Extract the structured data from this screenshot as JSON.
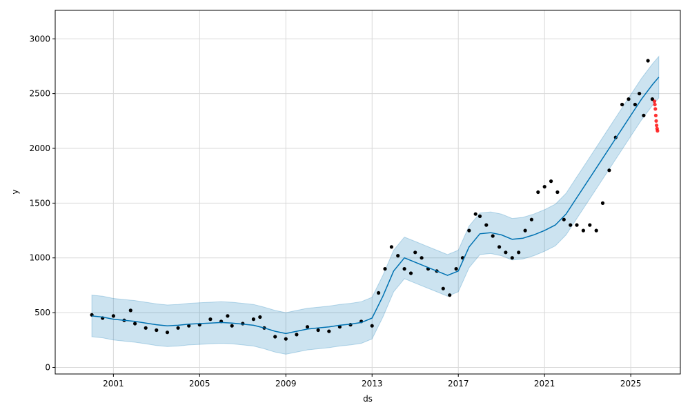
{
  "chart_data": {
    "type": "line",
    "title": "",
    "xlabel": "ds",
    "ylabel": "y",
    "xlim": [
      1998.3,
      2027.3
    ],
    "ylim": [
      -60,
      3260
    ],
    "xticks": [
      {
        "value": 2001,
        "label": "2001"
      },
      {
        "value": 2005,
        "label": "2005"
      },
      {
        "value": 2009,
        "label": "2009"
      },
      {
        "value": 2013,
        "label": "2013"
      },
      {
        "value": 2017,
        "label": "2017"
      },
      {
        "value": 2021,
        "label": "2021"
      },
      {
        "value": 2025,
        "label": "2025"
      }
    ],
    "yticks": [
      {
        "value": 0,
        "label": "0"
      },
      {
        "value": 500,
        "label": "500"
      },
      {
        "value": 1000,
        "label": "1000"
      },
      {
        "value": 1500,
        "label": "1500"
      },
      {
        "value": 2000,
        "label": "2000"
      },
      {
        "value": 2500,
        "label": "2500"
      },
      {
        "value": 3000,
        "label": "3000"
      }
    ],
    "grid": true,
    "colors": {
      "forecast_line": "#0072B2",
      "interval_fill": "#0072B2",
      "interval_edge": "#0072B2",
      "actual_points": "#000000",
      "test_points": "#ff0000",
      "grid": "#d9d9d9"
    },
    "forecast": {
      "x": [
        2000.0,
        2000.5,
        2001.0,
        2001.5,
        2002.0,
        2002.5,
        2003.0,
        2003.5,
        2004.0,
        2004.5,
        2005.0,
        2005.5,
        2006.0,
        2006.5,
        2007.0,
        2007.5,
        2008.0,
        2008.5,
        2009.0,
        2009.5,
        2010.0,
        2010.5,
        2011.0,
        2011.5,
        2012.0,
        2012.5,
        2013.0,
        2013.5,
        2014.0,
        2014.5,
        2015.0,
        2015.5,
        2016.0,
        2016.5,
        2017.0,
        2017.5,
        2018.0,
        2018.5,
        2019.0,
        2019.5,
        2020.0,
        2020.5,
        2021.0,
        2021.5,
        2022.0,
        2022.5,
        2023.0,
        2023.5,
        2024.0,
        2024.5,
        2025.0,
        2025.5,
        2026.0,
        2026.3
      ],
      "yhat": [
        470,
        460,
        440,
        430,
        420,
        405,
        390,
        380,
        385,
        395,
        400,
        405,
        410,
        405,
        395,
        385,
        360,
        330,
        310,
        330,
        350,
        360,
        370,
        385,
        395,
        410,
        450,
        650,
        880,
        1000,
        960,
        920,
        880,
        840,
        880,
        1100,
        1220,
        1230,
        1210,
        1170,
        1180,
        1210,
        1250,
        1300,
        1400,
        1550,
        1700,
        1850,
        2000,
        2150,
        2300,
        2450,
        2580,
        2650
      ],
      "yhat_lower": [
        280,
        270,
        250,
        240,
        230,
        215,
        200,
        190,
        195,
        205,
        210,
        215,
        220,
        215,
        205,
        195,
        170,
        140,
        120,
        140,
        160,
        170,
        180,
        195,
        205,
        220,
        260,
        460,
        690,
        810,
        770,
        730,
        690,
        650,
        690,
        910,
        1030,
        1040,
        1020,
        980,
        990,
        1020,
        1060,
        1110,
        1210,
        1360,
        1510,
        1660,
        1810,
        1960,
        2110,
        2260,
        2390,
        2460
      ],
      "yhat_upper": [
        660,
        650,
        630,
        620,
        610,
        595,
        580,
        570,
        575,
        585,
        590,
        595,
        600,
        595,
        585,
        575,
        550,
        520,
        500,
        520,
        540,
        550,
        560,
        575,
        585,
        600,
        640,
        840,
        1070,
        1190,
        1150,
        1110,
        1070,
        1030,
        1070,
        1290,
        1410,
        1420,
        1400,
        1360,
        1370,
        1400,
        1440,
        1490,
        1590,
        1740,
        1890,
        2040,
        2190,
        2340,
        2490,
        2640,
        2770,
        2840
      ]
    },
    "actual": {
      "x": [
        2000.0,
        2000.5,
        2001.0,
        2001.5,
        2001.8,
        2002.0,
        2002.5,
        2003.0,
        2003.5,
        2004.0,
        2004.5,
        2005.0,
        2005.5,
        2006.0,
        2006.3,
        2006.5,
        2007.0,
        2007.5,
        2007.8,
        2008.0,
        2008.5,
        2009.0,
        2009.5,
        2010.0,
        2010.5,
        2011.0,
        2011.5,
        2012.0,
        2012.5,
        2013.0,
        2013.3,
        2013.6,
        2013.9,
        2014.2,
        2014.5,
        2014.8,
        2015.0,
        2015.3,
        2015.6,
        2016.0,
        2016.3,
        2016.6,
        2016.9,
        2017.2,
        2017.5,
        2017.8,
        2018.0,
        2018.3,
        2018.6,
        2018.9,
        2019.2,
        2019.5,
        2019.8,
        2020.1,
        2020.4,
        2020.7,
        2021.0,
        2021.3,
        2021.6,
        2021.9,
        2022.2,
        2022.5,
        2022.8,
        2023.1,
        2023.4,
        2023.7,
        2024.0,
        2024.3,
        2024.6,
        2024.9,
        2025.2,
        2025.4,
        2025.6,
        2025.8,
        2026.0
      ],
      "y": [
        480,
        450,
        470,
        430,
        520,
        400,
        360,
        340,
        320,
        360,
        380,
        390,
        440,
        420,
        470,
        380,
        400,
        440,
        460,
        360,
        280,
        260,
        300,
        370,
        340,
        330,
        370,
        390,
        420,
        380,
        680,
        900,
        1100,
        1020,
        900,
        860,
        1050,
        1000,
        900,
        880,
        720,
        660,
        900,
        1000,
        1250,
        1400,
        1380,
        1300,
        1200,
        1100,
        1050,
        1000,
        1050,
        1250,
        1350,
        1600,
        1650,
        1700,
        1600,
        1350,
        1300,
        1300,
        1250,
        1300,
        1250,
        1500,
        1800,
        2100,
        2400,
        2450,
        2400,
        2500,
        2300,
        2800,
        2450
      ]
    },
    "test": {
      "x": [
        2026.1,
        2026.12,
        2026.14,
        2026.16,
        2026.18,
        2026.2,
        2026.22,
        2026.24
      ],
      "y": [
        2430,
        2400,
        2360,
        2300,
        2250,
        2210,
        2180,
        2160
      ]
    }
  }
}
